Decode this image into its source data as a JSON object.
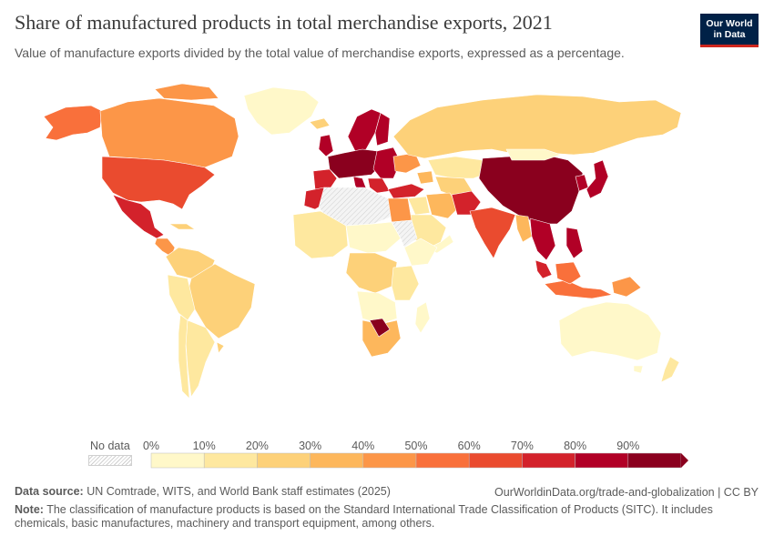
{
  "header": {
    "title": "Share of manufactured products in total merchandise exports, 2021",
    "subtitle": "Value of manufacture exports divided by the total value of merchandise exports, expressed as a percentage.",
    "logo_line1": "Our World",
    "logo_line2": "in Data"
  },
  "legend": {
    "no_data_label": "No data",
    "ticks": [
      "0%",
      "10%",
      "20%",
      "30%",
      "40%",
      "50%",
      "60%",
      "70%",
      "80%",
      "90%"
    ],
    "colors": [
      "#fff8c9",
      "#fee89f",
      "#fdd179",
      "#fdb75c",
      "#fc9648",
      "#f9703b",
      "#ea4b2f",
      "#d3222b",
      "#b10026",
      "#8a001e"
    ],
    "no_data_color": "#ececec"
  },
  "footer": {
    "source_label": "Data source:",
    "source_text": "UN Comtrade, WITS, and World Bank staff estimates (2025)",
    "url": "OurWorldinData.org/trade-and-globalization | CC BY",
    "note_label": "Note:",
    "note_text": "The classification of manufacture products is based on the Standard International Trade Classification of Products (SITC). It includes chemicals, basic manufactures, machinery and transport equipment, among others."
  }
}
